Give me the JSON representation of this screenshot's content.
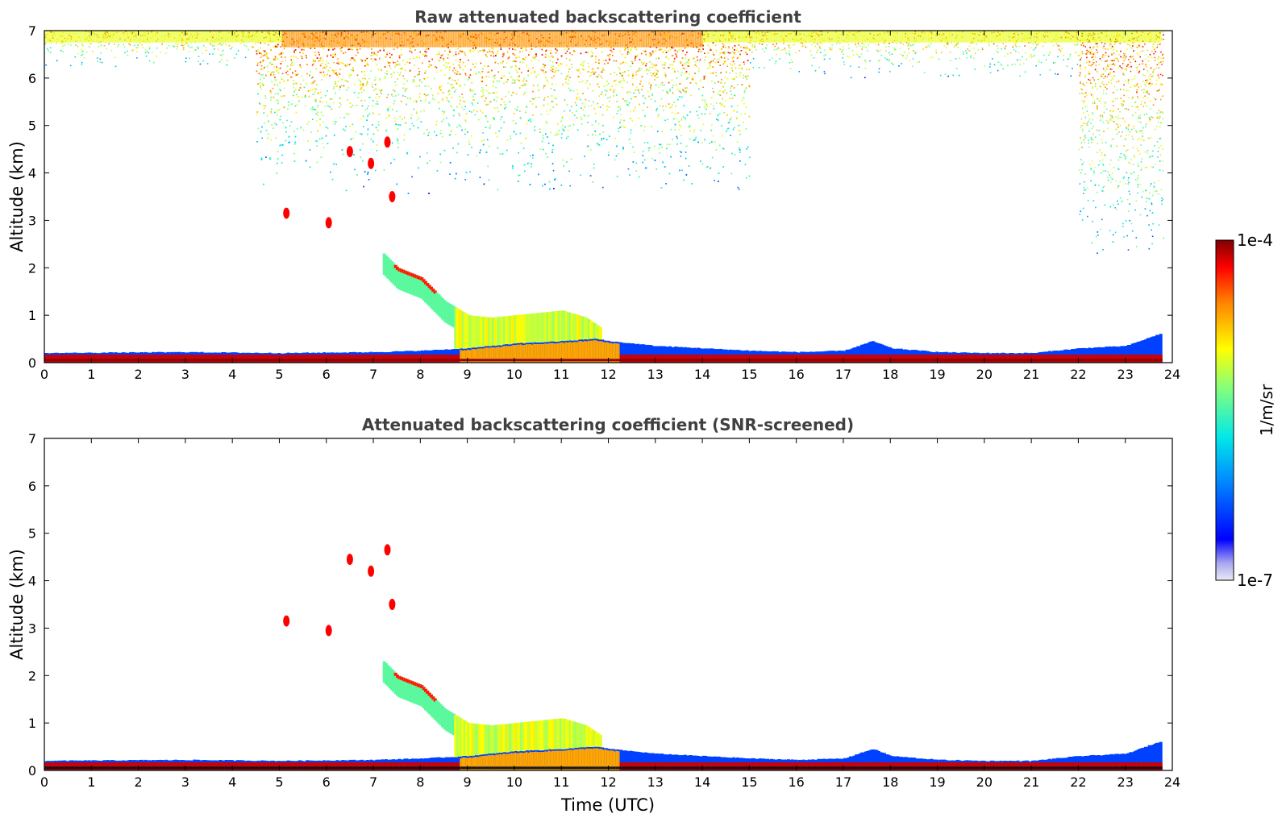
{
  "chart_data": [
    {
      "type": "heatmap",
      "title": "Raw attenuated backscattering coefficient",
      "xlabel": "",
      "ylabel": "Altitude (km)",
      "xlim": [
        0,
        24
      ],
      "ylim": [
        0,
        7
      ],
      "xticks": [
        0,
        1,
        2,
        3,
        4,
        5,
        6,
        7,
        8,
        9,
        10,
        11,
        12,
        13,
        14,
        15,
        16,
        17,
        18,
        19,
        20,
        21,
        22,
        23,
        24
      ],
      "yticks": [
        0,
        1,
        2,
        3,
        4,
        5,
        6,
        7
      ],
      "data_extent": [
        0,
        23.75
      ],
      "features": {
        "surface_layer": {
          "time": [
            0,
            3,
            5,
            7,
            8,
            9,
            10,
            11,
            11.7,
            12,
            13,
            14,
            15,
            16,
            17,
            17.6,
            18,
            19,
            20,
            21,
            22,
            23,
            23.7
          ],
          "top_km": [
            0.2,
            0.22,
            0.2,
            0.22,
            0.25,
            0.3,
            0.4,
            0.45,
            0.5,
            0.45,
            0.35,
            0.3,
            0.25,
            0.22,
            0.25,
            0.45,
            0.3,
            0.22,
            0.2,
            0.2,
            0.3,
            0.35,
            0.6
          ]
        },
        "residual_layer": {
          "time": [
            7.2,
            7.5,
            8,
            8.5,
            9,
            9.5,
            10,
            10.5,
            11,
            11.5,
            11.8
          ],
          "top_km": [
            2.3,
            2.0,
            1.8,
            1.3,
            1.0,
            0.95,
            1.0,
            1.05,
            1.1,
            0.95,
            0.75
          ]
        },
        "aerosol_plumes": [
          {
            "t": 6.5,
            "z": 4.45
          },
          {
            "t": 6.95,
            "z": 4.2
          },
          {
            "t": 7.3,
            "z": 4.65
          },
          {
            "t": 7.4,
            "z": 3.5
          },
          {
            "t": 5.15,
            "z": 3.15
          },
          {
            "t": 6.05,
            "z": 2.95
          }
        ],
        "noise_bands": [
          {
            "t0": 0,
            "t1": 4.5,
            "z0": 6.2,
            "intensity": 0.55
          },
          {
            "t0": 4.5,
            "t1": 15,
            "z0": 3.5,
            "intensity": 0.8
          },
          {
            "t0": 15,
            "t1": 22,
            "z0": 6.0,
            "intensity": 0.45
          },
          {
            "t0": 22,
            "t1": 23.8,
            "z0": 2.0,
            "intensity": 0.5
          }
        ]
      }
    },
    {
      "type": "heatmap",
      "title": "Attenuated backscattering coefficient (SNR-screened)",
      "xlabel": "Time (UTC)",
      "ylabel": "Altitude (km)",
      "xlim": [
        0,
        24
      ],
      "ylim": [
        0,
        7
      ],
      "xticks": [
        0,
        1,
        2,
        3,
        4,
        5,
        6,
        7,
        8,
        9,
        10,
        11,
        12,
        13,
        14,
        15,
        16,
        17,
        18,
        19,
        20,
        21,
        22,
        23,
        24
      ],
      "yticks": [
        0,
        1,
        2,
        3,
        4,
        5,
        6,
        7
      ],
      "data_extent": [
        0,
        23.75
      ]
    }
  ],
  "colorbar": {
    "label": "1/m/sr",
    "top_label": "1e-4",
    "bottom_label": "1e-7",
    "colormap": "jet",
    "colors": [
      "#e6e6f5",
      "#a0a0f0",
      "#0000ff",
      "#0080ff",
      "#00e0e0",
      "#80ff80",
      "#ffff00",
      "#ff8000",
      "#ff0000",
      "#800000"
    ]
  }
}
